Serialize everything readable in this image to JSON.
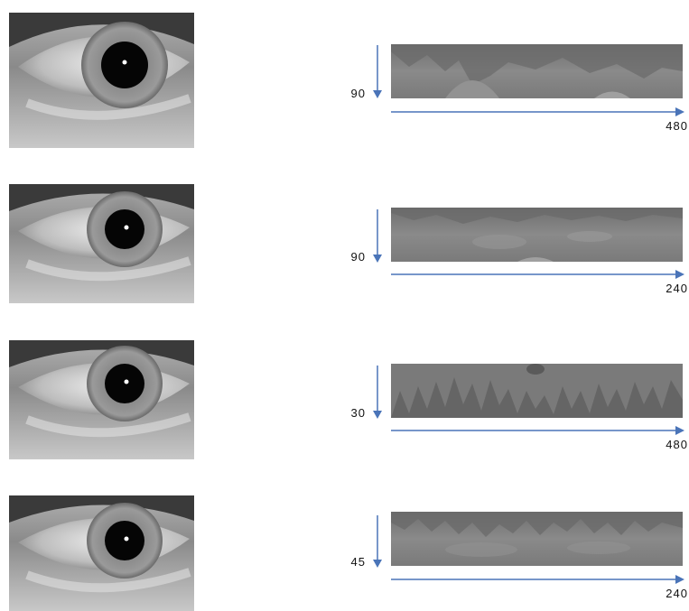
{
  "rows": [
    {
      "height_label": "90",
      "width_label": "480"
    },
    {
      "height_label": "90",
      "width_label": "240"
    },
    {
      "height_label": "30",
      "width_label": "480"
    },
    {
      "height_label": "45",
      "width_label": "240"
    }
  ],
  "colors": {
    "arrow": "#4a74b8",
    "strip": "#7d7d7d"
  },
  "icons": {
    "eye": "eye-image",
    "strip": "normalized-iris-strip"
  }
}
